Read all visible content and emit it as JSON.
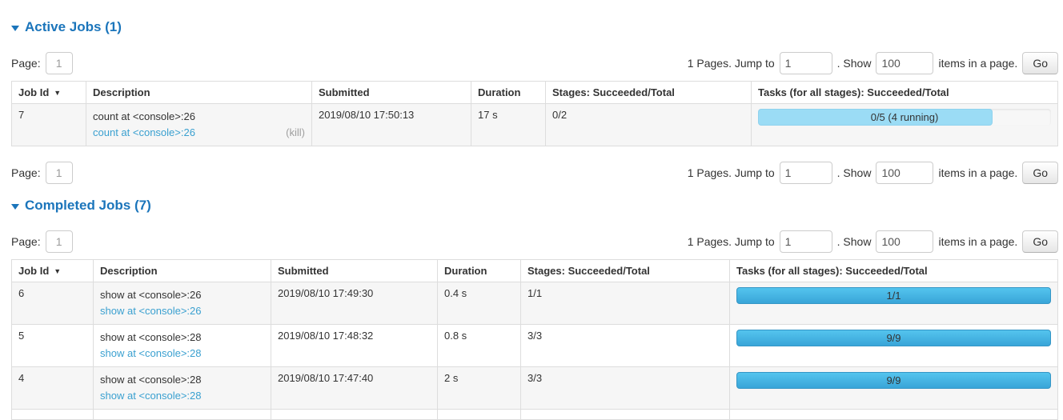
{
  "colors": {
    "section_title_blue": "#1b75bb",
    "link_blue": "#3aa0d0",
    "progress_done_blue": "#41aede",
    "progress_running_lightblue": "#9bdcf5",
    "row_stripe_gray": "#f6f6f6"
  },
  "pagination": {
    "page_label": "Page:",
    "page_value": "1",
    "pages_text": "1 Pages. Jump to",
    "jump_value": "1",
    "show_text": ". Show",
    "show_value": "100",
    "items_text": "items in a page.",
    "go_label": "Go"
  },
  "sort_arrow": "▼",
  "active_jobs": {
    "title": "Active Jobs (1)",
    "columns": [
      "Job Id",
      "Description",
      "Submitted",
      "Duration",
      "Stages: Succeeded/Total",
      "Tasks (for all stages): Succeeded/Total"
    ],
    "rows": [
      {
        "job_id": "7",
        "description": "count at <console>:26",
        "description_link": "count at <console>:26",
        "kill_label": "(kill)",
        "submitted": "2019/08/10 17:50:13",
        "duration": "17 s",
        "stages": "0/2",
        "tasks_label": "0/5 (4 running)",
        "progress_percent": 80,
        "progress_type": "running"
      }
    ]
  },
  "completed_jobs": {
    "title": "Completed Jobs (7)",
    "columns": [
      "Job Id",
      "Description",
      "Submitted",
      "Duration",
      "Stages: Succeeded/Total",
      "Tasks (for all stages): Succeeded/Total"
    ],
    "rows": [
      {
        "job_id": "6",
        "description": "show at <console>:26",
        "description_link": "show at <console>:26",
        "submitted": "2019/08/10 17:49:30",
        "duration": "0.4 s",
        "stages": "1/1",
        "tasks_label": "1/1",
        "progress_percent": 100,
        "progress_type": "done"
      },
      {
        "job_id": "5",
        "description": "show at <console>:28",
        "description_link": "show at <console>:28",
        "submitted": "2019/08/10 17:48:32",
        "duration": "0.8 s",
        "stages": "3/3",
        "tasks_label": "9/9",
        "progress_percent": 100,
        "progress_type": "done"
      },
      {
        "job_id": "4",
        "description": "show at <console>:28",
        "description_link": "show at <console>:28",
        "submitted": "2019/08/10 17:47:40",
        "duration": "2 s",
        "stages": "3/3",
        "tasks_label": "9/9",
        "progress_percent": 100,
        "progress_type": "done"
      }
    ]
  }
}
